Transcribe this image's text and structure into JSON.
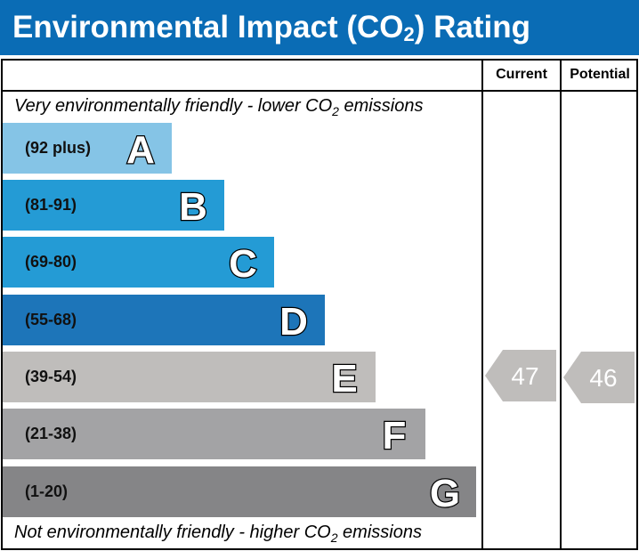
{
  "title": {
    "main": "Environmental Impact (CO",
    "sub": "2",
    "end": ") Rating"
  },
  "columns": {
    "current": "Current",
    "potential": "Potential"
  },
  "notes": {
    "top": {
      "pre": "Very environmentally friendly - lower CO",
      "sub": "2",
      "post": " emissions"
    },
    "bottom": {
      "pre": "Not environmentally friendly - higher CO",
      "sub": "2",
      "post": " emissions"
    }
  },
  "chart_data": {
    "type": "bar",
    "bands": [
      {
        "letter": "A",
        "range": "(92 plus)",
        "color": "#85c4e6"
      },
      {
        "letter": "B",
        "range": "(81-91)",
        "color": "#249bd5"
      },
      {
        "letter": "C",
        "range": "(69-80)",
        "color": "#249bd5"
      },
      {
        "letter": "D",
        "range": "(55-68)",
        "color": "#1d75b9"
      },
      {
        "letter": "E",
        "range": "(39-54)",
        "color": "#bfbdbb"
      },
      {
        "letter": "F",
        "range": "(21-38)",
        "color": "#a3a3a5"
      },
      {
        "letter": "G",
        "range": "(1-20)",
        "color": "#858587"
      }
    ],
    "current": {
      "value": "47",
      "band": "E",
      "color": "#bfbdbb"
    },
    "potential": {
      "value": "46",
      "band": "E",
      "color": "#bfbdbb"
    }
  }
}
